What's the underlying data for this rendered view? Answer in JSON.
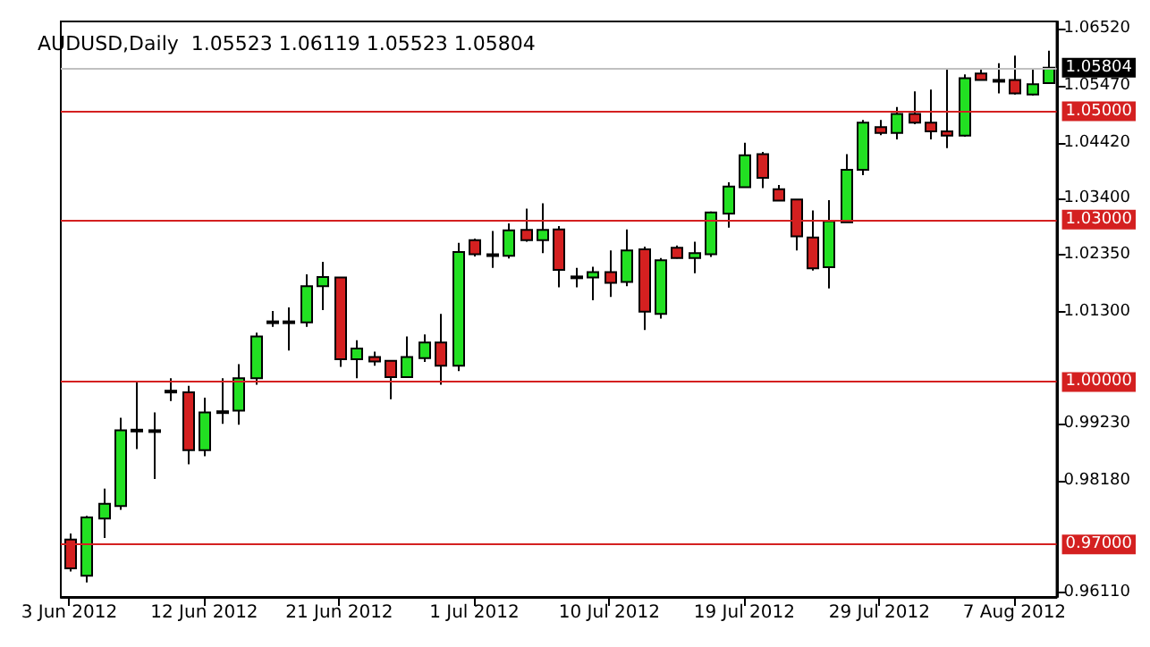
{
  "chart_data": {
    "type": "candlestick",
    "title": "AUDUSD,Daily  1.05523 1.06119 1.05523 1.05804",
    "categories": [
      "3 Jun 2012",
      null,
      null,
      null,
      null,
      null,
      null,
      null,
      "12 Jun 2012",
      null,
      null,
      null,
      null,
      null,
      null,
      null,
      "21 Jun 2012",
      null,
      null,
      null,
      null,
      null,
      null,
      null,
      "1 Jul 2012",
      null,
      null,
      null,
      null,
      null,
      null,
      null,
      "10 Jul 2012",
      null,
      null,
      null,
      null,
      null,
      null,
      null,
      "19 Jul 2012",
      null,
      null,
      null,
      null,
      null,
      null,
      null,
      "29 Jul 2012",
      null,
      null,
      null,
      null,
      null,
      null,
      null,
      "7 Aug 2012",
      null,
      null
    ],
    "ohlc": [
      [
        0.9709,
        0.972,
        0.965,
        0.9656
      ],
      [
        0.9642,
        0.9753,
        0.963,
        0.975
      ],
      [
        0.9748,
        0.9803,
        0.9712,
        0.9775
      ],
      [
        0.9771,
        0.9934,
        0.9764,
        0.9911
      ],
      [
        0.991,
        1.0,
        0.9876,
        0.9912
      ],
      [
        0.9911,
        0.9944,
        0.9821,
        0.9911
      ],
      [
        0.9984,
        1.0007,
        0.9965,
        0.9984
      ],
      [
        0.9981,
        0.9993,
        0.9848,
        0.9874
      ],
      [
        0.9874,
        0.9971,
        0.9863,
        0.9944
      ],
      [
        0.9946,
        1.0007,
        0.9923,
        0.9946
      ],
      [
        0.9947,
        1.0033,
        0.9921,
        1.0007
      ],
      [
        1.0007,
        1.0091,
        0.9995,
        1.0084
      ],
      [
        1.0112,
        1.0131,
        1.0102,
        1.0112
      ],
      [
        1.0112,
        1.0138,
        1.0058,
        1.0112
      ],
      [
        1.011,
        1.0199,
        1.0102,
        1.0177
      ],
      [
        1.0177,
        1.0222,
        1.0133,
        1.0194
      ],
      [
        1.0193,
        1.0193,
        1.0028,
        1.0042
      ],
      [
        1.0042,
        1.0077,
        1.0007,
        1.0062
      ],
      [
        1.0046,
        1.0056,
        1.003,
        1.0038
      ],
      [
        1.0039,
        1.0039,
        0.9968,
        1.0009
      ],
      [
        1.0009,
        1.0084,
        1.0009,
        1.0046
      ],
      [
        1.0044,
        1.0088,
        1.0037,
        1.0073
      ],
      [
        1.0073,
        1.0126,
        0.9995,
        1.003
      ],
      [
        1.003,
        1.0257,
        1.002,
        1.024
      ],
      [
        1.0262,
        1.0265,
        1.0232,
        1.0236
      ],
      [
        1.0236,
        1.0279,
        1.0211,
        1.0236
      ],
      [
        1.0233,
        1.0293,
        1.0228,
        1.028
      ],
      [
        1.0281,
        1.032,
        1.0259,
        1.0262
      ],
      [
        1.0262,
        1.033,
        1.0238,
        1.0281
      ],
      [
        1.0282,
        1.0288,
        1.0175,
        1.0207
      ],
      [
        1.0195,
        1.0211,
        1.0175,
        1.0195
      ],
      [
        1.0193,
        1.0213,
        1.0151,
        1.0203
      ],
      [
        1.0203,
        1.0243,
        1.0157,
        1.0183
      ],
      [
        1.0185,
        1.0282,
        1.0177,
        1.0243
      ],
      [
        1.0245,
        1.025,
        1.0096,
        1.013
      ],
      [
        1.0126,
        1.0229,
        1.0117,
        1.0225
      ],
      [
        1.0248,
        1.0252,
        1.0228,
        1.0229
      ],
      [
        1.0229,
        1.0259,
        1.0201,
        1.0238
      ],
      [
        1.0236,
        1.0315,
        1.0231,
        1.0313
      ],
      [
        1.0311,
        1.0369,
        1.0285,
        1.0361
      ],
      [
        1.036,
        1.0442,
        1.036,
        1.0419
      ],
      [
        1.0421,
        1.0425,
        1.0358,
        1.0377
      ],
      [
        1.0356,
        1.0364,
        1.0335,
        1.0335
      ],
      [
        1.0337,
        1.0337,
        1.0243,
        1.0269
      ],
      [
        1.0267,
        1.0317,
        1.0206,
        1.021
      ],
      [
        1.0212,
        1.0336,
        1.0173,
        1.0297
      ],
      [
        1.0295,
        1.0421,
        1.0295,
        1.0392
      ],
      [
        1.0392,
        1.0484,
        1.0382,
        1.0479
      ],
      [
        1.0471,
        1.0484,
        1.0456,
        1.046
      ],
      [
        1.046,
        1.0508,
        1.0448,
        1.0495
      ],
      [
        1.0495,
        1.0537,
        1.0476,
        1.0479
      ],
      [
        1.0479,
        1.054,
        1.0448,
        1.0463
      ],
      [
        1.0463,
        1.0578,
        1.0432,
        1.0455
      ],
      [
        1.0455,
        1.0568,
        1.0453,
        1.0561
      ],
      [
        1.057,
        1.0577,
        1.0558,
        1.0558
      ],
      [
        1.0558,
        1.0589,
        1.0533,
        1.0558
      ],
      [
        1.0558,
        1.0603,
        1.0531,
        1.0533
      ],
      [
        1.0531,
        1.0578,
        1.0529,
        1.055
      ],
      [
        1.05523,
        1.06119,
        1.05523,
        1.05804
      ]
    ],
    "colors": [
      "#d42020",
      "#22e022",
      "#22e022",
      "#22e022",
      "#22e022",
      "#22e022",
      "#22e022",
      "#d42020",
      "#22e022",
      "#22e022",
      "#22e022",
      "#22e022",
      "#22e022",
      "#22e022",
      "#22e022",
      "#22e022",
      "#d42020",
      "#22e022",
      "#d42020",
      "#d42020",
      "#22e022",
      "#22e022",
      "#d42020",
      "#22e022",
      "#d42020",
      "#22e022",
      "#22e022",
      "#d42020",
      "#22e022",
      "#d42020",
      "#22e022",
      "#22e022",
      "#d42020",
      "#22e022",
      "#d42020",
      "#22e022",
      "#d42020",
      "#22e022",
      "#22e022",
      "#22e022",
      "#22e022",
      "#d42020",
      "#d42020",
      "#d42020",
      "#d42020",
      "#22e022",
      "#22e022",
      "#22e022",
      "#d42020",
      "#22e022",
      "#d42020",
      "#d42020",
      "#d42020",
      "#22e022",
      "#d42020",
      "#22e022",
      "#d42020",
      "#22e022",
      "#22e022"
    ],
    "ylim": [
      0.9603,
      1.0666
    ],
    "yticks": [
      {
        "value": 0.9611,
        "label": "0.96110"
      },
      {
        "value": 0.9818,
        "label": "0.98180"
      },
      {
        "value": 0.9923,
        "label": "0.99230"
      },
      {
        "value": 1.013,
        "label": "1.01300"
      },
      {
        "value": 1.0235,
        "label": "1.02350"
      },
      {
        "value": 1.034,
        "label": "1.03400"
      },
      {
        "value": 1.0442,
        "label": "1.04420"
      },
      {
        "value": 1.0547,
        "label": "1.05470"
      },
      {
        "value": 1.0652,
        "label": "1.06520"
      }
    ],
    "ref_lines": [
      {
        "axis": "y",
        "value": 1.05,
        "label": "1.05000",
        "color": "#d42020"
      },
      {
        "axis": "y",
        "value": 1.03,
        "label": "1.03000",
        "color": "#d42020"
      },
      {
        "axis": "y",
        "value": 1.0,
        "label": "1.00000",
        "color": "#d42020"
      },
      {
        "axis": "y",
        "value": 0.97,
        "label": "0.97000",
        "color": "#d42020"
      },
      {
        "axis": "y",
        "value": 1.05804,
        "label": "1.05804",
        "color": "#c0c0c0"
      }
    ],
    "grid": false
  }
}
